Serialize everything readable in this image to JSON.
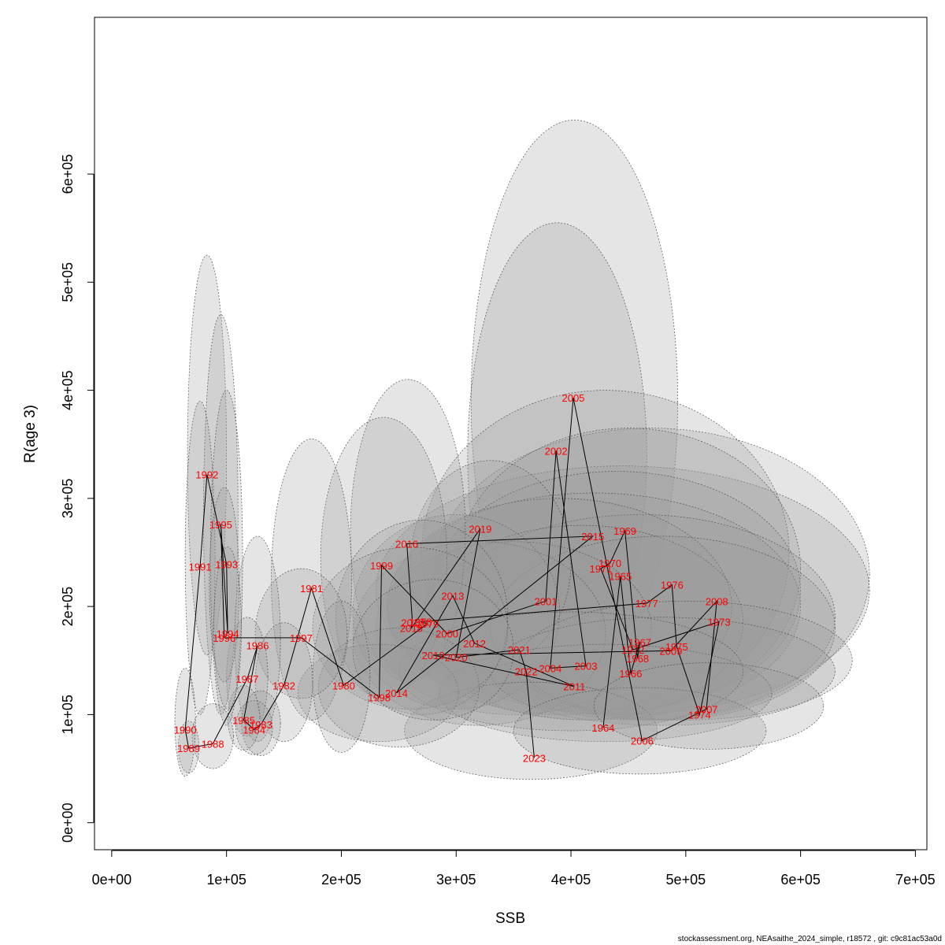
{
  "chart_data": {
    "type": "scatter",
    "title": "",
    "xlabel": "SSB",
    "ylabel": "R(age 3)",
    "xlim": [
      -15000,
      710000
    ],
    "ylim": [
      -25000,
      745000
    ],
    "x_ticks": [
      0,
      100000,
      200000,
      300000,
      400000,
      500000,
      600000,
      700000
    ],
    "x_tick_labels": [
      "0e+00",
      "1e+05",
      "2e+05",
      "3e+05",
      "4e+05",
      "5e+05",
      "6e+05",
      "7e+05"
    ],
    "y_ticks": [
      0,
      100000,
      200000,
      300000,
      400000,
      500000,
      600000
    ],
    "y_tick_labels": [
      "0e+00",
      "1e+05",
      "2e+05",
      "3e+05",
      "4e+05",
      "5e+05",
      "6e+05"
    ],
    "grid": false,
    "legend": "none",
    "point_color": "#ff0000",
    "line_color": "#000000",
    "ellipse_fill": "#9a9a9a",
    "footer": "stockassessment.org, NEAsaithe_2024_simple, r18572 , git: c9c81ac53a0d",
    "points": [
      {
        "year": "1964",
        "ssb": 428000,
        "rec": 88000
      },
      {
        "year": "1965",
        "ssb": 443000,
        "rec": 228000
      },
      {
        "year": "1966",
        "ssb": 452000,
        "rec": 138000
      },
      {
        "year": "1967",
        "ssb": 460000,
        "rec": 167000
      },
      {
        "year": "1968",
        "ssb": 458000,
        "rec": 152000
      },
      {
        "year": "1969",
        "ssb": 447000,
        "rec": 270000
      },
      {
        "year": "1970",
        "ssb": 434000,
        "rec": 240000
      },
      {
        "year": "1971",
        "ssb": 426000,
        "rec": 235000
      },
      {
        "year": "1972",
        "ssb": 454000,
        "rec": 160000
      },
      {
        "year": "1973",
        "ssb": 529000,
        "rec": 186000
      },
      {
        "year": "1974",
        "ssb": 512000,
        "rec": 100000
      },
      {
        "year": "1975",
        "ssb": 492000,
        "rec": 163000
      },
      {
        "year": "1976",
        "ssb": 488000,
        "rec": 220000
      },
      {
        "year": "1977",
        "ssb": 466000,
        "rec": 203000
      },
      {
        "year": "1978",
        "ssb": 269000,
        "rec": 186000
      },
      {
        "year": "1979",
        "ssb": 275000,
        "rec": 184000
      },
      {
        "year": "1980",
        "ssb": 202000,
        "rec": 127000
      },
      {
        "year": "1981",
        "ssb": 174000,
        "rec": 217000
      },
      {
        "year": "1982",
        "ssb": 150000,
        "rec": 127000
      },
      {
        "year": "1983",
        "ssb": 130000,
        "rec": 91000
      },
      {
        "year": "1984",
        "ssb": 124000,
        "rec": 86000
      },
      {
        "year": "1985",
        "ssb": 115000,
        "rec": 95000
      },
      {
        "year": "1986",
        "ssb": 127000,
        "rec": 164000
      },
      {
        "year": "1987",
        "ssb": 118000,
        "rec": 133000
      },
      {
        "year": "1988",
        "ssb": 88000,
        "rec": 73000
      },
      {
        "year": "1989",
        "ssb": 67000,
        "rec": 69000
      },
      {
        "year": "1990",
        "ssb": 64000,
        "rec": 86000
      },
      {
        "year": "1991",
        "ssb": 77000,
        "rec": 237000
      },
      {
        "year": "1992",
        "ssb": 83000,
        "rec": 322000
      },
      {
        "year": "1993",
        "ssb": 100000,
        "rec": 239000
      },
      {
        "year": "1994",
        "ssb": 101000,
        "rec": 175000
      },
      {
        "year": "1995",
        "ssb": 95000,
        "rec": 276000
      },
      {
        "year": "1996",
        "ssb": 98000,
        "rec": 171000
      },
      {
        "year": "1997",
        "ssb": 165000,
        "rec": 171000
      },
      {
        "year": "1998",
        "ssb": 233000,
        "rec": 116000
      },
      {
        "year": "1999",
        "ssb": 235000,
        "rec": 238000
      },
      {
        "year": "2000",
        "ssb": 292000,
        "rec": 175000
      },
      {
        "year": "2001",
        "ssb": 378000,
        "rec": 205000
      },
      {
        "year": "2002",
        "ssb": 387000,
        "rec": 344000
      },
      {
        "year": "2003",
        "ssb": 413000,
        "rec": 145000
      },
      {
        "year": "2004",
        "ssb": 382000,
        "rec": 143000
      },
      {
        "year": "2005",
        "ssb": 402000,
        "rec": 393000
      },
      {
        "year": "2006",
        "ssb": 462000,
        "rec": 76000
      },
      {
        "year": "2007",
        "ssb": 518000,
        "rec": 105000
      },
      {
        "year": "2008",
        "ssb": 527000,
        "rec": 205000
      },
      {
        "year": "2009",
        "ssb": 487000,
        "rec": 159000
      },
      {
        "year": "2010",
        "ssb": 280000,
        "rec": 155000
      },
      {
        "year": "2011",
        "ssb": 403000,
        "rec": 126000
      },
      {
        "year": "2012",
        "ssb": 316000,
        "rec": 166000
      },
      {
        "year": "2013",
        "ssb": 297000,
        "rec": 210000
      },
      {
        "year": "2014",
        "ssb": 248000,
        "rec": 120000
      },
      {
        "year": "2015",
        "ssb": 419000,
        "rec": 265000
      },
      {
        "year": "2016",
        "ssb": 257000,
        "rec": 258000
      },
      {
        "year": "2017",
        "ssb": 262000,
        "rec": 185000
      },
      {
        "year": "2018",
        "ssb": 261000,
        "rec": 180000
      },
      {
        "year": "2019",
        "ssb": 321000,
        "rec": 272000
      },
      {
        "year": "2020",
        "ssb": 300000,
        "rec": 153000
      },
      {
        "year": "2021",
        "ssb": 355000,
        "rec": 160000
      },
      {
        "year": "2022",
        "ssb": 361000,
        "rec": 140000
      },
      {
        "year": "2023",
        "ssb": 368000,
        "rec": 60000
      }
    ],
    "ellipses": [
      {
        "x": 403000,
        "y": 390000,
        "rx": 90000,
        "ry": 260000
      },
      {
        "x": 388000,
        "y": 340000,
        "rx": 78000,
        "ry": 215000
      },
      {
        "x": 470000,
        "y": 230000,
        "rx": 190000,
        "ry": 135000
      },
      {
        "x": 445000,
        "y": 215000,
        "rx": 215000,
        "ry": 115000
      },
      {
        "x": 430000,
        "y": 250000,
        "rx": 160000,
        "ry": 150000
      },
      {
        "x": 450000,
        "y": 235000,
        "rx": 150000,
        "ry": 130000
      },
      {
        "x": 440000,
        "y": 215000,
        "rx": 160000,
        "ry": 110000
      },
      {
        "x": 420000,
        "y": 200000,
        "rx": 180000,
        "ry": 105000
      },
      {
        "x": 460000,
        "y": 190000,
        "rx": 170000,
        "ry": 95000
      },
      {
        "x": 390000,
        "y": 200000,
        "rx": 150000,
        "ry": 100000
      },
      {
        "x": 410000,
        "y": 185000,
        "rx": 140000,
        "ry": 90000
      },
      {
        "x": 480000,
        "y": 180000,
        "rx": 150000,
        "ry": 85000
      },
      {
        "x": 350000,
        "y": 180000,
        "rx": 120000,
        "ry": 80000
      },
      {
        "x": 320000,
        "y": 175000,
        "rx": 110000,
        "ry": 85000
      },
      {
        "x": 300000,
        "y": 195000,
        "rx": 90000,
        "ry": 90000
      },
      {
        "x": 330000,
        "y": 240000,
        "rx": 70000,
        "ry": 95000
      },
      {
        "x": 500000,
        "y": 150000,
        "rx": 145000,
        "ry": 55000
      },
      {
        "x": 480000,
        "y": 140000,
        "rx": 150000,
        "ry": 50000
      },
      {
        "x": 430000,
        "y": 120000,
        "rx": 145000,
        "ry": 45000
      },
      {
        "x": 400000,
        "y": 140000,
        "rx": 150000,
        "ry": 55000
      },
      {
        "x": 365000,
        "y": 85000,
        "rx": 110000,
        "ry": 45000
      },
      {
        "x": 460000,
        "y": 85000,
        "rx": 110000,
        "ry": 40000
      },
      {
        "x": 520000,
        "y": 108000,
        "rx": 100000,
        "ry": 40000
      },
      {
        "x": 258000,
        "y": 270000,
        "rx": 50000,
        "ry": 140000
      },
      {
        "x": 237000,
        "y": 245000,
        "rx": 55000,
        "ry": 130000
      },
      {
        "x": 270000,
        "y": 190000,
        "rx": 75000,
        "ry": 90000
      },
      {
        "x": 260000,
        "y": 180000,
        "rx": 85000,
        "ry": 75000
      },
      {
        "x": 232000,
        "y": 120000,
        "rx": 70000,
        "ry": 45000
      },
      {
        "x": 250000,
        "y": 125000,
        "rx": 70000,
        "ry": 55000
      },
      {
        "x": 280000,
        "y": 160000,
        "rx": 70000,
        "ry": 65000
      },
      {
        "x": 174000,
        "y": 225000,
        "rx": 35000,
        "ry": 130000
      },
      {
        "x": 200000,
        "y": 135000,
        "rx": 25000,
        "ry": 70000
      },
      {
        "x": 165000,
        "y": 175000,
        "rx": 40000,
        "ry": 60000
      },
      {
        "x": 150000,
        "y": 130000,
        "rx": 25000,
        "ry": 55000
      },
      {
        "x": 127000,
        "y": 170000,
        "rx": 20000,
        "ry": 95000
      },
      {
        "x": 118000,
        "y": 135000,
        "rx": 18000,
        "ry": 55000
      },
      {
        "x": 130000,
        "y": 92000,
        "rx": 17000,
        "ry": 30000
      },
      {
        "x": 124000,
        "y": 88000,
        "rx": 16000,
        "ry": 25000
      },
      {
        "x": 115000,
        "y": 97000,
        "rx": 14000,
        "ry": 30000
      },
      {
        "x": 83000,
        "y": 340000,
        "rx": 17000,
        "ry": 185000
      },
      {
        "x": 95000,
        "y": 285000,
        "rx": 15000,
        "ry": 185000
      },
      {
        "x": 77000,
        "y": 245000,
        "rx": 13000,
        "ry": 145000
      },
      {
        "x": 100000,
        "y": 245000,
        "rx": 14000,
        "ry": 155000
      },
      {
        "x": 98000,
        "y": 220000,
        "rx": 13000,
        "ry": 90000
      },
      {
        "x": 101000,
        "y": 180000,
        "rx": 12000,
        "ry": 75000
      },
      {
        "x": 88000,
        "y": 80000,
        "rx": 18000,
        "ry": 30000
      },
      {
        "x": 67000,
        "y": 70000,
        "rx": 9000,
        "ry": 24000
      },
      {
        "x": 64000,
        "y": 93000,
        "rx": 9000,
        "ry": 50000
      }
    ]
  }
}
